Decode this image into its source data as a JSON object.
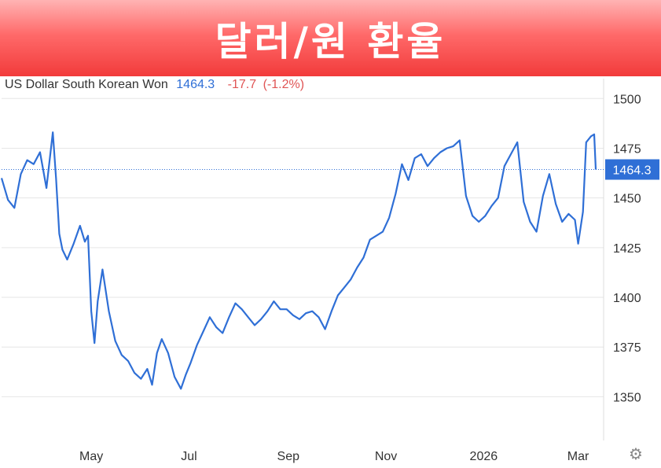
{
  "banner": {
    "title": "달러/원 환율"
  },
  "header": {
    "instrument": "US Dollar South Korean Won",
    "value": "1464.3",
    "change": "-17.7",
    "change_pct": "(-1.2%)"
  },
  "colors": {
    "line": "#2f6fd6",
    "grid": "#e6e6e6",
    "badge": "#2f6fd6",
    "negative": "#e05555"
  },
  "icons": {
    "settings": "gear-icon"
  },
  "chart_data": {
    "type": "line",
    "title": "",
    "xlabel": "",
    "ylabel": "",
    "ylim": [
      1328,
      1510
    ],
    "y_ticks": [
      1500,
      1475,
      1450,
      1425,
      1400,
      1375,
      1350
    ],
    "y_tick_labels": [
      "1500",
      "1475",
      "1450",
      "1425",
      "1400",
      "1375",
      "1350"
    ],
    "x_tick_labels": [
      "May",
      "Jul",
      "Sep",
      "Nov",
      "2026",
      "Mar"
    ],
    "x_tick_dates": [
      "2025-05-01",
      "2025-07-01",
      "2025-09-01",
      "2025-11-01",
      "2026-01-01",
      "2026-03-01"
    ],
    "x_range": [
      "2025-03-06",
      "2026-03-12"
    ],
    "last_value": 1464.3,
    "last_label": "1464.3",
    "grid": true,
    "series": [
      {
        "x": [
          "2025-03-06",
          "2025-03-10",
          "2025-03-14",
          "2025-03-18",
          "2025-03-22",
          "2025-03-26",
          "2025-03-30",
          "2025-04-03",
          "2025-04-07",
          "2025-04-09",
          "2025-04-11",
          "2025-04-13",
          "2025-04-16",
          "2025-04-20",
          "2025-04-24",
          "2025-04-27",
          "2025-04-29",
          "2025-05-01",
          "2025-05-03",
          "2025-05-05",
          "2025-05-08",
          "2025-05-12",
          "2025-05-16",
          "2025-05-20",
          "2025-05-24",
          "2025-05-28",
          "2025-06-01",
          "2025-06-05",
          "2025-06-08",
          "2025-06-11",
          "2025-06-14",
          "2025-06-18",
          "2025-06-22",
          "2025-06-26",
          "2025-06-29",
          "2025-07-02",
          "2025-07-06",
          "2025-07-10",
          "2025-07-14",
          "2025-07-18",
          "2025-07-22",
          "2025-07-26",
          "2025-07-30",
          "2025-08-03",
          "2025-08-07",
          "2025-08-11",
          "2025-08-15",
          "2025-08-19",
          "2025-08-23",
          "2025-08-27",
          "2025-08-31",
          "2025-09-04",
          "2025-09-08",
          "2025-09-12",
          "2025-09-16",
          "2025-09-20",
          "2025-09-24",
          "2025-09-28",
          "2025-10-02",
          "2025-10-06",
          "2025-10-10",
          "2025-10-14",
          "2025-10-18",
          "2025-10-22",
          "2025-10-26",
          "2025-10-30",
          "2025-11-03",
          "2025-11-07",
          "2025-11-11",
          "2025-11-15",
          "2025-11-19",
          "2025-11-23",
          "2025-11-27",
          "2025-12-01",
          "2025-12-05",
          "2025-12-09",
          "2025-12-13",
          "2025-12-17",
          "2025-12-21",
          "2025-12-25",
          "2025-12-29",
          "2026-01-02",
          "2026-01-06",
          "2026-01-10",
          "2026-01-14",
          "2026-01-18",
          "2026-01-22",
          "2026-01-26",
          "2026-01-30",
          "2026-02-03",
          "2026-02-07",
          "2026-02-11",
          "2026-02-15",
          "2026-02-19",
          "2026-02-23",
          "2026-02-27",
          "2026-03-01",
          "2026-03-04",
          "2026-03-06",
          "2026-03-09",
          "2026-03-11",
          "2026-03-12"
        ],
        "values": [
          1460,
          1449,
          1445,
          1462,
          1469,
          1467,
          1473,
          1455,
          1483,
          1460,
          1432,
          1424,
          1419,
          1427,
          1436,
          1428,
          1431,
          1393,
          1377,
          1398,
          1414,
          1393,
          1378,
          1371,
          1368,
          1362,
          1359,
          1364,
          1356,
          1372,
          1379,
          1372,
          1360,
          1354,
          1361,
          1367,
          1376,
          1383,
          1390,
          1385,
          1382,
          1390,
          1397,
          1394,
          1390,
          1386,
          1389,
          1393,
          1398,
          1394,
          1394,
          1391,
          1389,
          1392,
          1393,
          1390,
          1384,
          1393,
          1401,
          1405,
          1409,
          1415,
          1420,
          1429,
          1431,
          1433,
          1440,
          1452,
          1467,
          1459,
          1470,
          1472,
          1466,
          1470,
          1473,
          1475,
          1476,
          1479,
          1451,
          1441,
          1438,
          1441,
          1446,
          1450,
          1466,
          1472,
          1478,
          1448,
          1438,
          1433,
          1451,
          1462,
          1447,
          1438,
          1442,
          1439,
          1427,
          1443,
          1478,
          1481,
          1482,
          1464.3
        ]
      }
    ]
  }
}
